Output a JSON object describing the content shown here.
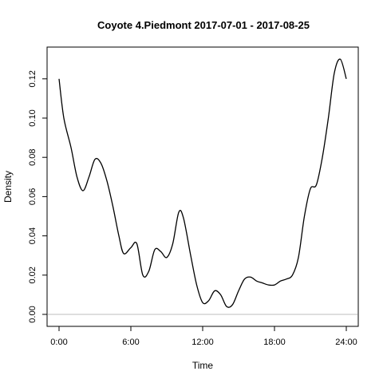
{
  "chart_data": {
    "type": "line",
    "title": "Coyote 4.Piedmont 2017-07-01 - 2017-08-25",
    "xlabel": "Time",
    "ylabel": "Density",
    "xlim": [
      0,
      24
    ],
    "ylim": [
      0,
      0.13
    ],
    "x_ticks": [
      {
        "value": 0,
        "label": "0:00"
      },
      {
        "value": 6,
        "label": "6:00"
      },
      {
        "value": 12,
        "label": "12:00"
      },
      {
        "value": 18,
        "label": "18:00"
      },
      {
        "value": 24,
        "label": "24:00"
      }
    ],
    "y_ticks": [
      {
        "value": 0,
        "label": "0.00"
      },
      {
        "value": 0.02,
        "label": "0.02"
      },
      {
        "value": 0.04,
        "label": "0.04"
      },
      {
        "value": 0.06,
        "label": "0.06"
      },
      {
        "value": 0.08,
        "label": "0.08"
      },
      {
        "value": 0.1,
        "label": "0.10"
      },
      {
        "value": 0.12,
        "label": "0.12"
      }
    ],
    "reference_line_y": 0,
    "reference_line_color": "#bebebe",
    "line_color": "#000000",
    "series": [
      {
        "x": [
          0,
          0.4,
          1,
          1.5,
          2,
          2.5,
          3,
          3.5,
          4,
          4.5,
          5,
          5.4,
          6,
          6.5,
          7,
          7.5,
          8,
          8.5,
          9,
          9.5,
          10,
          10.4,
          11,
          11.5,
          12,
          12.5,
          13,
          13.5,
          14,
          14.5,
          15,
          15.5,
          16,
          16.5,
          17,
          17.5,
          18,
          18.5,
          19,
          19.5,
          20,
          20.5,
          21,
          21.5,
          22,
          22.5,
          23,
          23.5,
          24
        ],
        "y": [
          0.12,
          0.1,
          0.085,
          0.07,
          0.063,
          0.07,
          0.079,
          0.077,
          0.068,
          0.055,
          0.04,
          0.031,
          0.034,
          0.036,
          0.02,
          0.022,
          0.033,
          0.032,
          0.029,
          0.036,
          0.052,
          0.049,
          0.03,
          0.015,
          0.006,
          0.007,
          0.012,
          0.01,
          0.004,
          0.005,
          0.012,
          0.018,
          0.019,
          0.017,
          0.016,
          0.015,
          0.015,
          0.017,
          0.018,
          0.02,
          0.029,
          0.05,
          0.064,
          0.066,
          0.08,
          0.1,
          0.123,
          0.13,
          0.12
        ]
      }
    ]
  }
}
